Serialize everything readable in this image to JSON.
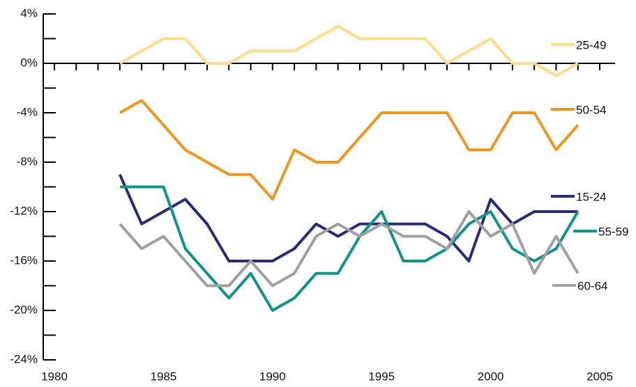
{
  "chart_data": {
    "type": "line",
    "x": [
      1983,
      1984,
      1985,
      1986,
      1987,
      1988,
      1989,
      1990,
      1991,
      1992,
      1993,
      1994,
      1995,
      1996,
      1997,
      1998,
      1999,
      2000,
      2001,
      2002,
      2003,
      2004
    ],
    "series": [
      {
        "name": "25-49",
        "color": "#fddc8c",
        "values": [
          0,
          1,
          2,
          2,
          0,
          0,
          1,
          1,
          1,
          2,
          3,
          2,
          2,
          2,
          2,
          0,
          1,
          2,
          0,
          0,
          -1,
          0
        ]
      },
      {
        "name": "50-54",
        "color": "#f0961e",
        "values": [
          -4,
          -3,
          -5,
          -7,
          -8,
          -9,
          -9,
          -11,
          -7,
          -8,
          -8,
          -6,
          -4,
          -4,
          -4,
          -4,
          -7,
          -7,
          -4,
          -4,
          -7,
          -5
        ]
      },
      {
        "name": "15-24",
        "color": "#2a2a7a",
        "values": [
          -9,
          -13,
          -12,
          -11,
          -13,
          -16,
          -16,
          -16,
          -15,
          -13,
          -14,
          -13,
          -13,
          -13,
          -13,
          -14,
          -16,
          -11,
          -13,
          -12,
          -12,
          -12
        ]
      },
      {
        "name": "55-59",
        "color": "#0f9488",
        "values": [
          -10,
          -10,
          -10,
          -15,
          -17,
          -19,
          -17,
          -20,
          -19,
          -17,
          -17,
          -14,
          -12,
          -16,
          -16,
          -15,
          -13,
          -12,
          -15,
          -16,
          -15,
          -12
        ]
      },
      {
        "name": "60-64",
        "color": "#a0a0a0",
        "values": [
          -13,
          -15,
          -14,
          -16,
          -18,
          -18,
          -16,
          -18,
          -17,
          -14,
          -13,
          -14,
          -13,
          -14,
          -14,
          -15,
          -12,
          -14,
          -13,
          -17,
          -14,
          -17
        ]
      }
    ],
    "xlim": [
      1980,
      2005
    ],
    "xticks": [
      1980,
      1985,
      1990,
      1995,
      2000,
      2005
    ],
    "xminor_ticks": [
      1981,
      1982,
      1983,
      1984,
      1986,
      1987,
      1988,
      1989,
      1991,
      1992,
      1993,
      1994,
      1996,
      1997,
      1998,
      1999,
      2001,
      2002,
      2003,
      2004
    ],
    "ylim": [
      -24,
      4
    ],
    "yticks": [
      {
        "value": 4,
        "label": "4%"
      },
      {
        "value": 0,
        "label": "0%"
      },
      {
        "value": -4,
        "label": "-4%"
      },
      {
        "value": -8,
        "label": "-8%"
      },
      {
        "value": -12,
        "label": "-12%"
      },
      {
        "value": -16,
        "label": "-16%"
      },
      {
        "value": -20,
        "label": "-20%"
      },
      {
        "value": -24,
        "label": "-24%"
      }
    ],
    "yminor_ticks": [
      2,
      -2,
      -6,
      -10,
      -14,
      -18,
      -22
    ]
  }
}
